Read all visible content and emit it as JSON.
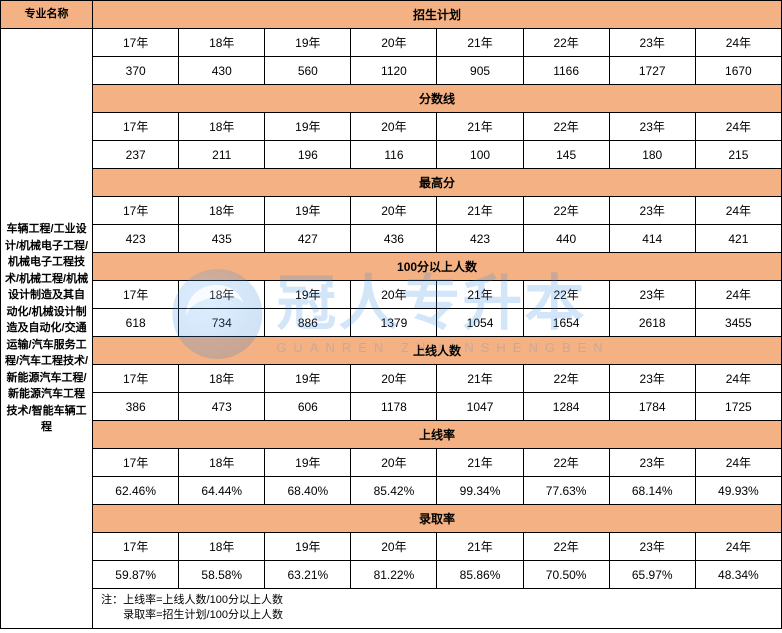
{
  "header": {
    "major_label": "专业名称",
    "plan_label": "招生计划"
  },
  "years": [
    "17年",
    "18年",
    "19年",
    "20年",
    "21年",
    "22年",
    "23年",
    "24年"
  ],
  "major_names": "车辆工程/工业设计/机械电子工程/机械电子工程技术/机械工程/机械设计制造及其自动化/机械设计制造及自动化/交通运输/汽车服务工程/汽车工程技术/新能源汽车工程/新能源汽车工程技术/智能车辆工程",
  "sections": [
    {
      "title": "招生计划",
      "values": [
        "370",
        "430",
        "560",
        "1120",
        "905",
        "1166",
        "1727",
        "1670"
      ]
    },
    {
      "title": "分数线",
      "values": [
        "237",
        "211",
        "196",
        "116",
        "100",
        "145",
        "180",
        "215"
      ]
    },
    {
      "title": "最高分",
      "values": [
        "423",
        "435",
        "427",
        "436",
        "423",
        "440",
        "414",
        "421"
      ]
    },
    {
      "title": "100分以上人数",
      "values": [
        "618",
        "734",
        "886",
        "1379",
        "1054",
        "1654",
        "2618",
        "3455"
      ]
    },
    {
      "title": "上线人数",
      "values": [
        "386",
        "473",
        "606",
        "1178",
        "1047",
        "1284",
        "1784",
        "1725"
      ]
    },
    {
      "title": "上线率",
      "values": [
        "62.46%",
        "64.44%",
        "68.40%",
        "85.42%",
        "99.34%",
        "77.63%",
        "68.14%",
        "49.93%"
      ]
    },
    {
      "title": "录取率",
      "values": [
        "59.87%",
        "58.58%",
        "63.21%",
        "81.22%",
        "85.86%",
        "70.50%",
        "65.97%",
        "48.34%"
      ]
    }
  ],
  "note_line1": "注：上线率=上线人数/100分以上人数",
  "note_line2": "　　录取率=招生计划/100分以上人数",
  "watermark": {
    "main": "冠人专升本",
    "sub": "GUANREN ZHUANSHENGBEN"
  },
  "colors": {
    "header_bg": "#f4b183",
    "border": "#000000",
    "wm": "#3a8de0"
  }
}
